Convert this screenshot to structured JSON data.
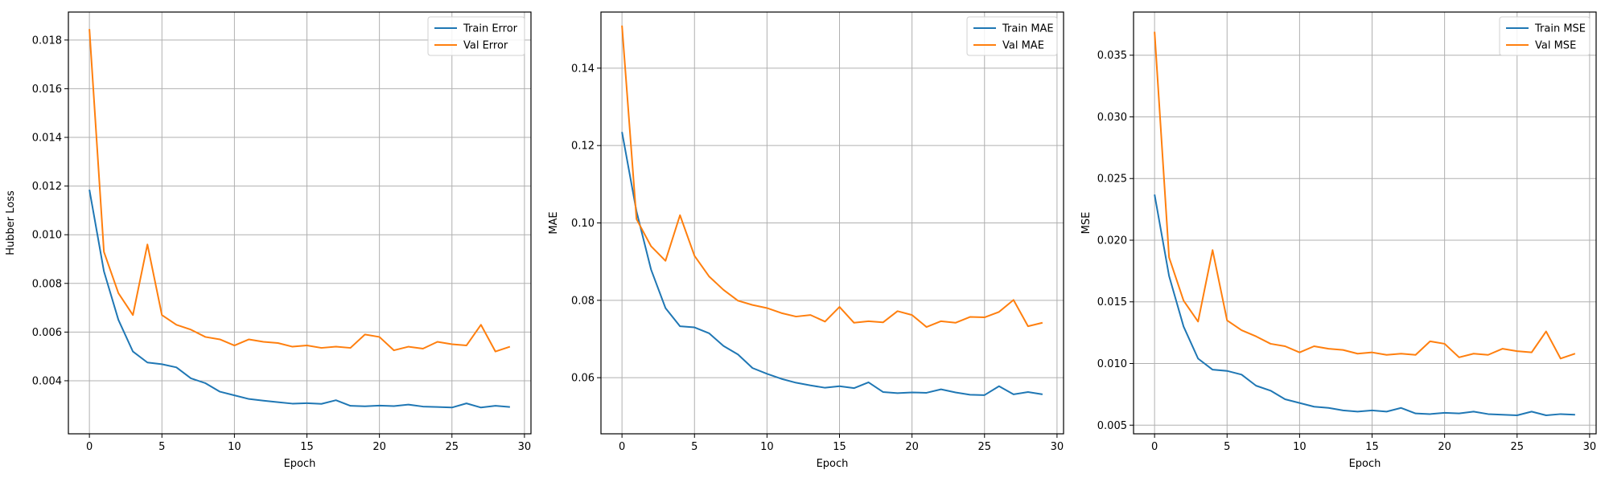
{
  "colors": {
    "train": "#1f77b4",
    "val": "#ff7f0e",
    "grid": "#b0b0b0",
    "axis": "#000000"
  },
  "chart_data": [
    {
      "type": "line",
      "xlabel": "Epoch",
      "ylabel": "Hubber Loss",
      "xlim": [
        -1.45,
        30.45
      ],
      "ylim": [
        0.00182,
        0.01915
      ],
      "xticks": [
        0,
        5,
        10,
        15,
        20,
        25,
        30
      ],
      "yticks": [
        0.004,
        0.006,
        0.008,
        0.01,
        0.012,
        0.014,
        0.016,
        0.018
      ],
      "tick_decimals": 3,
      "grid": true,
      "legend_position": "top-right",
      "x": [
        0,
        1,
        2,
        3,
        4,
        5,
        6,
        7,
        8,
        9,
        10,
        11,
        12,
        13,
        14,
        15,
        16,
        17,
        18,
        19,
        20,
        21,
        22,
        23,
        24,
        25,
        26,
        27,
        28,
        29
      ],
      "series": [
        {
          "name": "Train Error",
          "values": [
            0.01185,
            0.0085,
            0.0065,
            0.0052,
            0.00475,
            0.00468,
            0.00455,
            0.0041,
            0.0039,
            0.00355,
            0.0034,
            0.00325,
            0.00318,
            0.00312,
            0.00306,
            0.00308,
            0.00305,
            0.0032,
            0.00297,
            0.00295,
            0.00298,
            0.00296,
            0.00302,
            0.00294,
            0.00292,
            0.0029,
            0.00307,
            0.0029,
            0.00297,
            0.00292
          ]
        },
        {
          "name": "Val Error",
          "values": [
            0.01845,
            0.0093,
            0.0076,
            0.0067,
            0.0096,
            0.0067,
            0.0063,
            0.0061,
            0.0058,
            0.0057,
            0.00545,
            0.0057,
            0.0056,
            0.00555,
            0.0054,
            0.00545,
            0.00535,
            0.0054,
            0.00535,
            0.0059,
            0.0058,
            0.00525,
            0.0054,
            0.00532,
            0.0056,
            0.0055,
            0.00545,
            0.0063,
            0.0052,
            0.0054
          ]
        }
      ]
    },
    {
      "type": "line",
      "xlabel": "Epoch",
      "ylabel": "MAE",
      "xlim": [
        -1.45,
        30.45
      ],
      "ylim": [
        0.0455,
        0.1545
      ],
      "xticks": [
        0,
        5,
        10,
        15,
        20,
        25,
        30
      ],
      "yticks": [
        0.06,
        0.08,
        0.1,
        0.12,
        0.14
      ],
      "tick_decimals": 2,
      "grid": true,
      "legend_position": "top-right",
      "x": [
        0,
        1,
        2,
        3,
        4,
        5,
        6,
        7,
        8,
        9,
        10,
        11,
        12,
        13,
        14,
        15,
        16,
        17,
        18,
        19,
        20,
        21,
        22,
        23,
        24,
        25,
        26,
        27,
        28,
        29
      ],
      "series": [
        {
          "name": "Train MAE",
          "values": [
            0.1235,
            0.103,
            0.088,
            0.078,
            0.0733,
            0.073,
            0.0715,
            0.0682,
            0.066,
            0.0625,
            0.061,
            0.0597,
            0.0587,
            0.058,
            0.0574,
            0.0578,
            0.0573,
            0.0588,
            0.0563,
            0.056,
            0.0562,
            0.0561,
            0.057,
            0.0562,
            0.0556,
            0.0555,
            0.0578,
            0.0557,
            0.0563,
            0.0557
          ]
        },
        {
          "name": "Val MAE",
          "values": [
            0.151,
            0.101,
            0.094,
            0.0902,
            0.102,
            0.0915,
            0.0862,
            0.0827,
            0.0799,
            0.0788,
            0.078,
            0.0767,
            0.0758,
            0.0762,
            0.0745,
            0.0783,
            0.0742,
            0.0746,
            0.0743,
            0.0772,
            0.0762,
            0.0731,
            0.0746,
            0.0742,
            0.0757,
            0.0756,
            0.077,
            0.0801,
            0.0733,
            0.0742
          ]
        }
      ]
    },
    {
      "type": "line",
      "xlabel": "Epoch",
      "ylabel": "MSE",
      "xlim": [
        -1.45,
        30.45
      ],
      "ylim": [
        0.0043,
        0.0385
      ],
      "xticks": [
        0,
        5,
        10,
        15,
        20,
        25,
        30
      ],
      "yticks": [
        0.005,
        0.01,
        0.015,
        0.02,
        0.025,
        0.03,
        0.035
      ],
      "tick_decimals": 3,
      "grid": true,
      "legend_position": "top-right",
      "x": [
        0,
        1,
        2,
        3,
        4,
        5,
        6,
        7,
        8,
        9,
        10,
        11,
        12,
        13,
        14,
        15,
        16,
        17,
        18,
        19,
        20,
        21,
        22,
        23,
        24,
        25,
        26,
        27,
        28,
        29
      ],
      "series": [
        {
          "name": "Train MSE",
          "values": [
            0.0237,
            0.0171,
            0.013,
            0.0104,
            0.0095,
            0.0094,
            0.0091,
            0.0082,
            0.0078,
            0.0071,
            0.0068,
            0.0065,
            0.0064,
            0.0062,
            0.0061,
            0.0062,
            0.0061,
            0.0064,
            0.00595,
            0.0059,
            0.006,
            0.00595,
            0.0061,
            0.0059,
            0.00585,
            0.0058,
            0.0061,
            0.0058,
            0.0059,
            0.00585
          ]
        },
        {
          "name": "Val MSE",
          "values": [
            0.0369,
            0.0186,
            0.0151,
            0.0134,
            0.0192,
            0.0135,
            0.0127,
            0.0122,
            0.0116,
            0.0114,
            0.0109,
            0.0114,
            0.0112,
            0.0111,
            0.0108,
            0.0109,
            0.0107,
            0.0108,
            0.0107,
            0.0118,
            0.0116,
            0.0105,
            0.0108,
            0.0107,
            0.0112,
            0.011,
            0.0109,
            0.0126,
            0.0104,
            0.0108
          ]
        }
      ]
    }
  ]
}
